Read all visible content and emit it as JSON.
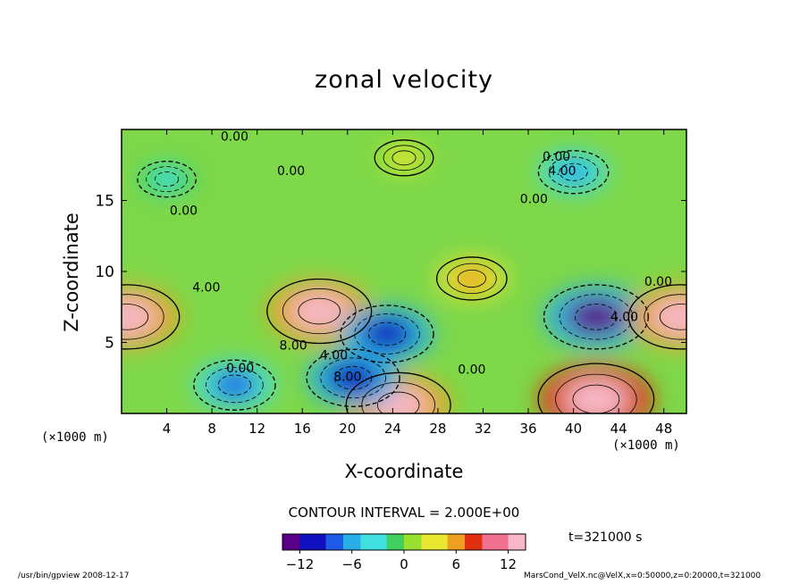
{
  "chart_data": {
    "type": "heatmap",
    "title": "zonal velocity",
    "xlabel": "X-coordinate",
    "ylabel": "Z-coordinate",
    "x_unit_label": "(×1000 m)",
    "xlim": [
      0,
      50
    ],
    "ylim": [
      0,
      20
    ],
    "x_ticks": [
      4,
      8,
      12,
      16,
      20,
      24,
      28,
      32,
      36,
      40,
      44,
      48
    ],
    "y_ticks": [
      5,
      10,
      15
    ],
    "colorbar": {
      "range": [
        -14,
        14
      ],
      "ticks": [
        -12,
        -6,
        0,
        6,
        12
      ],
      "colors": [
        "#5a0088",
        "#1010c0",
        "#1e5ae6",
        "#2aaee8",
        "#40e0e0",
        "#40d060",
        "#9ae030",
        "#e8e830",
        "#f0a020",
        "#e03010",
        "#f07090",
        "#f8b8c8"
      ]
    },
    "features": [
      {
        "x": 17.5,
        "z": 7.2,
        "value": 12
      },
      {
        "x": 23.5,
        "z": 5.6,
        "value": -10
      },
      {
        "x": 42.0,
        "z": 6.8,
        "value": -12
      },
      {
        "x": 42.0,
        "z": 1.0,
        "value": 14
      },
      {
        "x": 24.5,
        "z": 0.6,
        "value": 12
      },
      {
        "x": 0.5,
        "z": 6.8,
        "value": 12
      },
      {
        "x": 49.5,
        "z": 6.8,
        "value": 12
      },
      {
        "x": 20.5,
        "z": 2.5,
        "value": -10
      },
      {
        "x": 31.0,
        "z": 9.5,
        "value": 6
      },
      {
        "x": 40.0,
        "z": 17.0,
        "value": -6
      },
      {
        "x": 4.0,
        "z": 16.5,
        "value": -4
      },
      {
        "x": 10.0,
        "z": 2.0,
        "value": -8
      },
      {
        "x": 25.0,
        "z": 18.0,
        "value": 4
      }
    ],
    "contour_labels": [
      {
        "x": 10.0,
        "z": 19.2,
        "text": "0.00"
      },
      {
        "x": 15.0,
        "z": 16.8,
        "text": "0.00"
      },
      {
        "x": 5.5,
        "z": 14.0,
        "text": "0.00"
      },
      {
        "x": 38.5,
        "z": 17.8,
        "text": "0.00"
      },
      {
        "x": 39.0,
        "z": 16.8,
        "text": "4.00"
      },
      {
        "x": 36.5,
        "z": 14.8,
        "text": "0.00"
      },
      {
        "x": 7.5,
        "z": 8.6,
        "text": "4.00"
      },
      {
        "x": 15.2,
        "z": 4.5,
        "text": "8.00"
      },
      {
        "x": 10.5,
        "z": 2.9,
        "text": "0.00"
      },
      {
        "x": 18.8,
        "z": 3.8,
        "text": "4.00"
      },
      {
        "x": 20.0,
        "z": 2.3,
        "text": "8.00"
      },
      {
        "x": 31.0,
        "z": 2.8,
        "text": "0.00"
      },
      {
        "x": 44.5,
        "z": 6.5,
        "text": "4.00"
      },
      {
        "x": 47.5,
        "z": 9.0,
        "text": "0.00"
      }
    ]
  },
  "contour_interval": "CONTOUR INTERVAL = 2.000E+00",
  "time_label": "t=321000 s",
  "footer_left": "/usr/bin/gpview   2008-12-17",
  "footer_right": "MarsCond_VelX.nc@VelX,x=0:50000,z=0:20000,t=321000"
}
